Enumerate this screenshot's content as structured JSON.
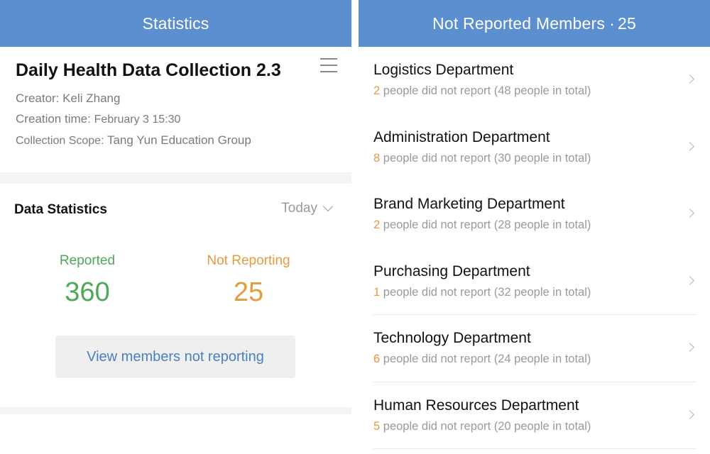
{
  "left": {
    "header_title": "Statistics",
    "task": {
      "title": "Daily Health Data Collection 2.3",
      "creator_label": "Creator:",
      "creator": "Keli Zhang",
      "creation_time_label": "Creation time:",
      "creation_time": "February 3 15:30",
      "scope_label": "Collection Scope:",
      "scope": "Tang Yun Education Group"
    },
    "stats": {
      "title": "Data Statistics",
      "period": "Today",
      "reported_label": "Reported",
      "reported_value": "360",
      "not_reporting_label": "Not Reporting",
      "not_reporting_value": "25",
      "view_button": "View members not reporting"
    }
  },
  "right": {
    "header_title": "Not Reported Members",
    "header_count": "25",
    "header_sep": "·",
    "departments": [
      {
        "name": "Logistics Department",
        "count": "2",
        "rest": " people did not report (48 people in total)"
      },
      {
        "name": "Administration Department",
        "count": "8",
        "rest": " people did not report (30 people in total)"
      },
      {
        "name": "Brand Marketing Department",
        "count": "2",
        "rest": " people did not report (28 people in total)"
      },
      {
        "name": "Purchasing Department",
        "count": "1",
        "rest": " people did not report (32 people in total)"
      },
      {
        "name": "Technology Department",
        "count": "6",
        "rest": " people did not report (24 people in total)"
      },
      {
        "name": "Human Resources Department",
        "count": "5",
        "rest": " people did not report (20 people in total)"
      }
    ]
  },
  "colors": {
    "header": "#5b8fd0",
    "reported": "#4fa85a",
    "not_reporting": "#e59a3f",
    "link": "#4a7fc4"
  },
  "icons": {
    "menu": "menu-icon",
    "dropdown": "chevron-down-icon",
    "row_arrow": "chevron-right-icon"
  }
}
